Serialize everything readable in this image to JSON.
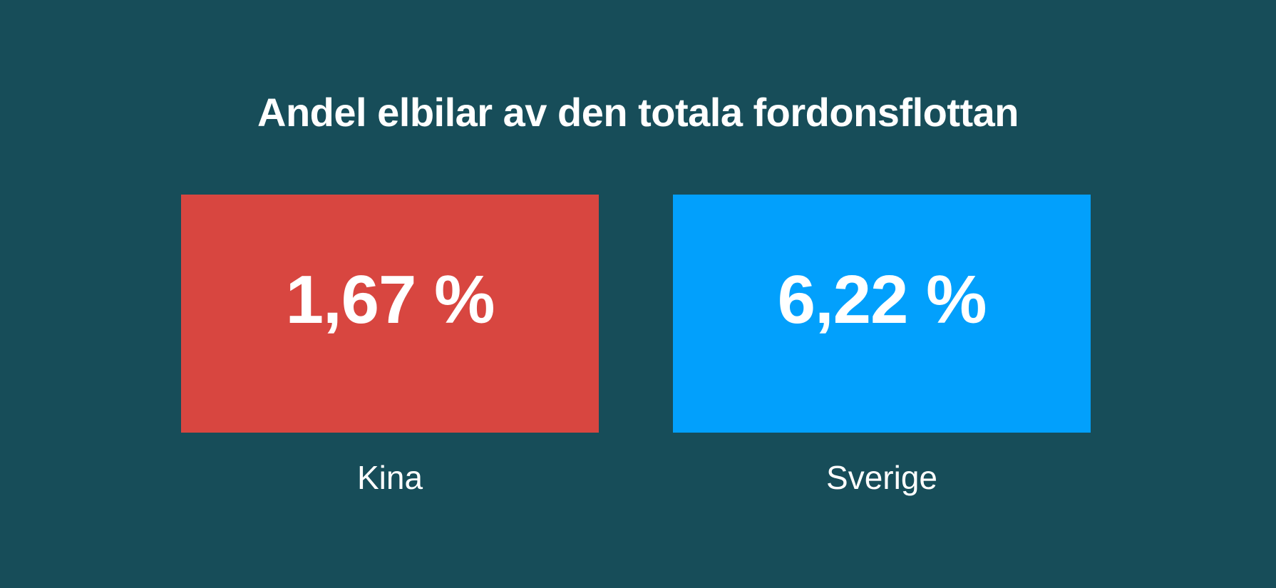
{
  "chart_data": {
    "type": "table",
    "title": "Andel elbilar av den totala fordonsflottan",
    "categories": [
      "Kina",
      "Sverige"
    ],
    "values": [
      1.67,
      6.22
    ],
    "value_labels": [
      "1,67 %",
      "6,22 %"
    ],
    "colors": [
      "#d84640",
      "#02a0fc"
    ],
    "background": "#174d59"
  }
}
